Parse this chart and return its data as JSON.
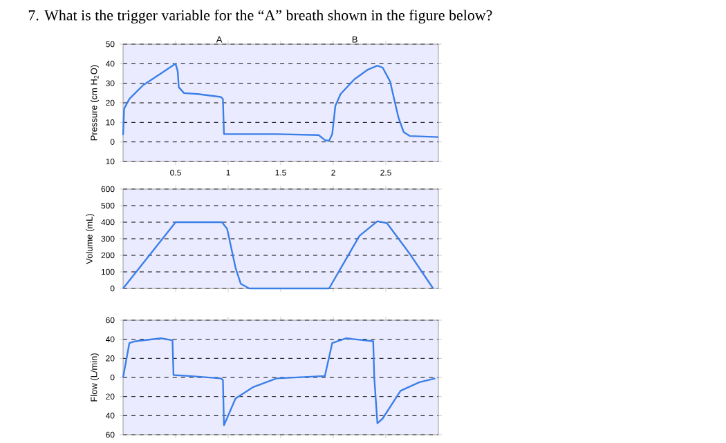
{
  "chart_data": [
    {
      "type": "line",
      "title": "7. What is the trigger variable for the “A” breath shown in the figure below?",
      "ylabel": "Pressure (cm H$_{2}$O)",
      "annotations": [
        "A",
        "B"
      ],
      "grid": "y",
      "xlim": [
        0,
        3
      ],
      "ylim": [
        -10,
        50
      ],
      "xticks": [
        0.5,
        1,
        1.5,
        2,
        2.5
      ],
      "yticks": [
        {
          "value": -10,
          "label": "10"
        },
        0,
        10,
        20,
        30,
        40,
        50
      ],
      "x": [
        0,
        0.01,
        0.06,
        0.19,
        0.36,
        0.47,
        0.5,
        0.52,
        0.53,
        0.58,
        0.71,
        0.93,
        0.95,
        0.96,
        1.46,
        1.86,
        1.92,
        1.96,
        1.99,
        2.02,
        2.07,
        2.2,
        2.33,
        2.42,
        2.47,
        2.54,
        2.62,
        2.67,
        2.73,
        3.0
      ],
      "series": [
        {
          "color": "#3a7fe8",
          "values": [
            3.5,
            17,
            22,
            29,
            35,
            39,
            40,
            36,
            28,
            25,
            24.5,
            23,
            22,
            4,
            4,
            3.5,
            1,
            0.5,
            4,
            18.5,
            24.5,
            32,
            37,
            39,
            38,
            31,
            12.5,
            5,
            3,
            2.5
          ]
        }
      ]
    },
    {
      "type": "line",
      "ylabel": "Volume (mL)",
      "grid": "y",
      "tick_labels": "y",
      "xlim": [
        0,
        3
      ],
      "ylim": [
        0,
        600
      ],
      "xticks": [
        {
          "value": 0.5,
          "label": null
        },
        {
          "value": 1,
          "label": null
        },
        {
          "value": 1.5,
          "label": null
        },
        {
          "value": 2,
          "label": null
        },
        {
          "value": 2.5,
          "label": null
        }
      ],
      "yticks": [
        0,
        100,
        200,
        300,
        400,
        500,
        600
      ],
      "x": [
        0,
        0.5,
        0.94,
        0.99,
        1.07,
        1.12,
        1.2,
        1.96,
        2.25,
        2.42,
        2.51,
        2.73,
        2.95
      ],
      "series": [
        {
          "color": "#3a7fe8",
          "values": [
            0,
            400,
            400,
            360,
            125,
            28,
            0,
            0,
            318,
            406,
            395,
            207,
            0
          ]
        }
      ]
    },
    {
      "type": "line",
      "ylabel": "Flow (L/min)",
      "grid": "y",
      "tick_labels": "y",
      "xlim": [
        0,
        3
      ],
      "ylim": [
        -60,
        60
      ],
      "xticks": [
        {
          "value": 0.5,
          "label": null
        },
        {
          "value": 1,
          "label": null
        },
        {
          "value": 1.5,
          "label": null
        },
        {
          "value": 2,
          "label": null
        },
        {
          "value": 2.5,
          "label": null
        }
      ],
      "yticks": [
        {
          "value": -60,
          "label": "60"
        },
        {
          "value": -40,
          "label": "40"
        },
        {
          "value": -20,
          "label": "20"
        },
        0,
        20,
        40,
        60
      ],
      "x": [
        0,
        0.06,
        0.12,
        0.36,
        0.47,
        0.48,
        0.63,
        0.93,
        0.95,
        0.96,
        0.98,
        1.07,
        1.24,
        1.46,
        1.92,
        1.99,
        2.12,
        2.38,
        2.39,
        2.42,
        2.47,
        2.64,
        2.82,
        2.97
      ],
      "series": [
        {
          "color": "#3a7fe8",
          "values": [
            0,
            36,
            38,
            41,
            39,
            2.5,
            1.5,
            -1,
            -2.5,
            -50,
            -45,
            -22,
            -10,
            -1,
            1.5,
            36,
            41,
            38,
            0,
            -48,
            -43,
            -14,
            -5,
            -1
          ]
        }
      ]
    }
  ]
}
